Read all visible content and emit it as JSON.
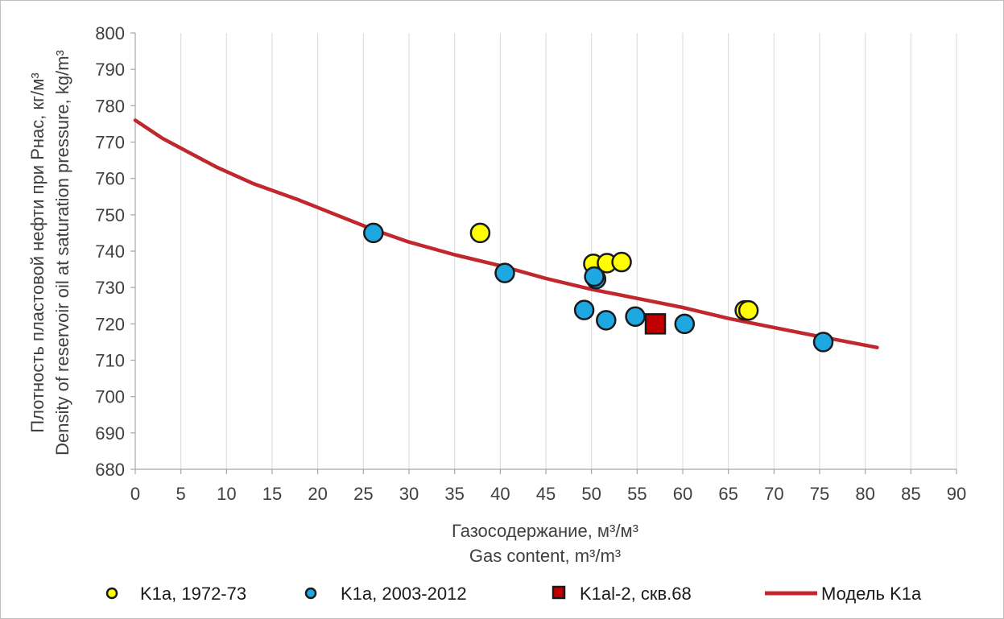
{
  "chart_data": {
    "type": "scatter",
    "xlabel": [
      "Газосодержание, м³/м³",
      "Gas content, m³/m³"
    ],
    "ylabel": [
      "Плотность пластовой нефти при Рнас, кг/м³",
      "Density of reservoir oil at saturation pressure, kg/m³"
    ],
    "xlim": [
      0,
      90
    ],
    "ylim": [
      680,
      800
    ],
    "xticks": [
      0,
      5,
      10,
      15,
      20,
      25,
      30,
      35,
      40,
      45,
      50,
      55,
      60,
      65,
      70,
      75,
      80,
      85,
      90
    ],
    "yticks": [
      680,
      690,
      700,
      710,
      720,
      730,
      740,
      750,
      760,
      770,
      780,
      790,
      800
    ],
    "grid": "vertical-major",
    "legend_position": "bottom",
    "series": [
      {
        "name": "K1a, 1972-73",
        "kind": "scatter",
        "marker": "circle",
        "color": "#ffff00",
        "points": [
          [
            37.8,
            745
          ],
          [
            50.2,
            736.5
          ],
          [
            51.7,
            736.7
          ],
          [
            53.3,
            737
          ],
          [
            66.8,
            723.7
          ],
          [
            67.2,
            723.7
          ]
        ]
      },
      {
        "name": "K1a, 2003-2012",
        "kind": "scatter",
        "marker": "circle",
        "color": "#1ea7e1",
        "points": [
          [
            26.1,
            745
          ],
          [
            40.5,
            734
          ],
          [
            50.5,
            732.3
          ],
          [
            50.3,
            733
          ],
          [
            49.2,
            723.8
          ],
          [
            51.6,
            721
          ],
          [
            54.8,
            722
          ],
          [
            60.2,
            720
          ],
          [
            75.4,
            715
          ]
        ]
      },
      {
        "name": "K1al-2, скв.68",
        "kind": "scatter",
        "marker": "square",
        "color": "#c00000",
        "points": [
          [
            57,
            720
          ]
        ]
      },
      {
        "name": "Модель K1a",
        "kind": "line",
        "color": "#c0282d",
        "points": [
          [
            0,
            776
          ],
          [
            3,
            771
          ],
          [
            6,
            767
          ],
          [
            9,
            763
          ],
          [
            13,
            758.5
          ],
          [
            18,
            754
          ],
          [
            22,
            750
          ],
          [
            26,
            746
          ],
          [
            30,
            742.5
          ],
          [
            35,
            739
          ],
          [
            40,
            736
          ],
          [
            45,
            732.5
          ],
          [
            50,
            729.5
          ],
          [
            55,
            727
          ],
          [
            60,
            724.5
          ],
          [
            65,
            721.5
          ],
          [
            70,
            719
          ],
          [
            75,
            716.5
          ],
          [
            81.3,
            713.5
          ]
        ]
      }
    ]
  }
}
